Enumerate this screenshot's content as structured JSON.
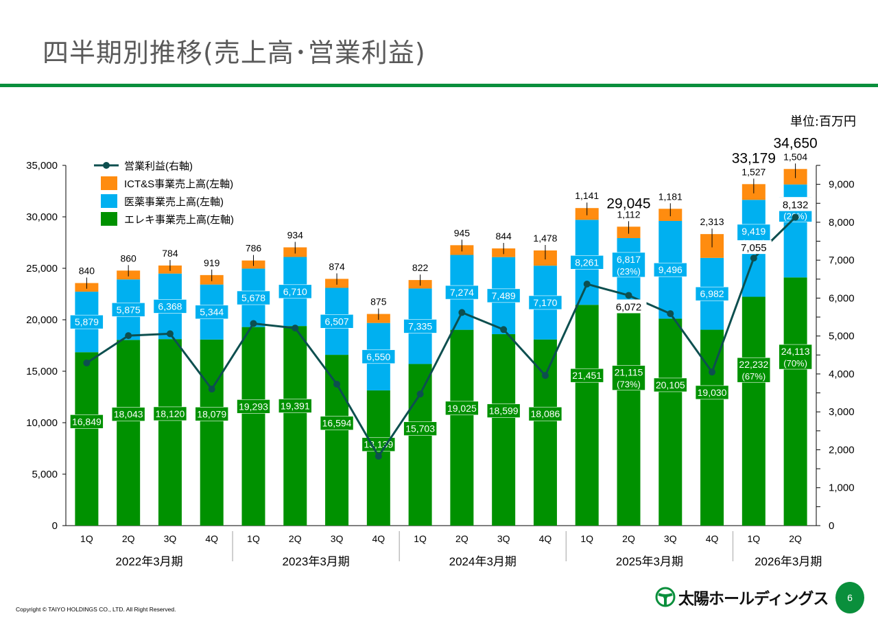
{
  "slide": {
    "title": "四半期別推移(売上高･営業利益)",
    "unit_label": "単位:百万円",
    "copyright": "Copyright © TAIYO HOLDINGS CO., LTD.  All Right Reserved.",
    "logo_text": "太陽ホールディングス",
    "page_number": "6",
    "brand_color": "#0a8f3c"
  },
  "chart_data": {
    "type": "bar",
    "stacked": true,
    "title": "四半期別推移(売上高･営業利益)",
    "unit": "百万円",
    "categories": [
      "1Q",
      "2Q",
      "3Q",
      "4Q",
      "1Q",
      "2Q",
      "3Q",
      "4Q",
      "1Q",
      "2Q",
      "3Q",
      "4Q",
      "1Q",
      "2Q",
      "3Q",
      "4Q",
      "1Q",
      "2Q"
    ],
    "fiscal_groups": [
      {
        "label": "2022年3月期",
        "count": 4
      },
      {
        "label": "2023年3月期",
        "count": 4
      },
      {
        "label": "2024年3月期",
        "count": 4
      },
      {
        "label": "2025年3月期",
        "count": 4
      },
      {
        "label": "2026年3月期",
        "count": 2
      }
    ],
    "series": [
      {
        "name": "エレキ事業売上高(左軸)",
        "axis": "left",
        "color": "#009100",
        "values": [
          16849,
          18043,
          18120,
          18079,
          19293,
          19391,
          16594,
          13139,
          15703,
          19025,
          18599,
          18086,
          21451,
          21115,
          20105,
          19030,
          22232,
          24113
        ],
        "share_labels": [
          null,
          null,
          null,
          null,
          null,
          null,
          null,
          null,
          null,
          null,
          null,
          null,
          null,
          "(73%)",
          null,
          null,
          "(67%)",
          "(70%)"
        ]
      },
      {
        "name": "医薬事業売上高(左軸)",
        "axis": "left",
        "color": "#00b0f0",
        "values": [
          5879,
          5875,
          6368,
          5344,
          5678,
          6710,
          6507,
          6550,
          7335,
          7274,
          7489,
          7170,
          8261,
          6817,
          9496,
          6982,
          9419,
          9032
        ],
        "share_labels": [
          null,
          null,
          null,
          null,
          null,
          null,
          null,
          null,
          null,
          null,
          null,
          null,
          null,
          "(23%)",
          null,
          null,
          "(28%)",
          "(26%)"
        ]
      },
      {
        "name": "ICT&S事業売上高(左軸)",
        "axis": "left",
        "color": "#ff8c0f",
        "values": [
          840,
          860,
          784,
          919,
          786,
          934,
          874,
          875,
          822,
          945,
          844,
          1478,
          1141,
          1112,
          1181,
          2313,
          1527,
          1504
        ]
      },
      {
        "name": "営業利益(右軸)",
        "axis": "right",
        "type": "line",
        "color": "#0d4f4f",
        "values": [
          4290,
          5010,
          5060,
          3600,
          5330,
          5210,
          3730,
          1830,
          3470,
          5620,
          5170,
          3960,
          6370,
          6072,
          5590,
          4050,
          7055,
          8132
        ],
        "labeled_values": [
          null,
          null,
          null,
          null,
          null,
          null,
          null,
          null,
          null,
          null,
          null,
          null,
          null,
          "6,072",
          null,
          null,
          "7,055",
          "8,132"
        ]
      }
    ],
    "total_labels": [
      null,
      null,
      null,
      null,
      null,
      null,
      null,
      null,
      null,
      null,
      null,
      null,
      null,
      "29,045",
      null,
      null,
      "33,179",
      "34,650"
    ],
    "y_left": {
      "min": 0,
      "max": 35000,
      "ticks": [
        "0",
        "5,000",
        "10,000",
        "15,000",
        "20,000",
        "25,000",
        "30,000",
        "35,000"
      ]
    },
    "y_right": {
      "min": 0,
      "max": 9500,
      "ticks": [
        "0",
        "1,000",
        "2,000",
        "3,000",
        "4,000",
        "5,000",
        "6,000",
        "7,000",
        "8,000",
        "9,000"
      ]
    },
    "legend": {
      "position": "top-left",
      "items": [
        {
          "label": "営業利益(右軸)",
          "type": "line",
          "color": "#0d4f4f"
        },
        {
          "label": "ICT&S事業売上高(左軸)",
          "type": "box",
          "color": "#ff8c0f"
        },
        {
          "label": "医薬事業売上高(左軸)",
          "type": "box",
          "color": "#00b0f0"
        },
        {
          "label": "エレキ事業売上高(左軸)",
          "type": "box",
          "color": "#009100"
        }
      ]
    },
    "grid": false
  }
}
